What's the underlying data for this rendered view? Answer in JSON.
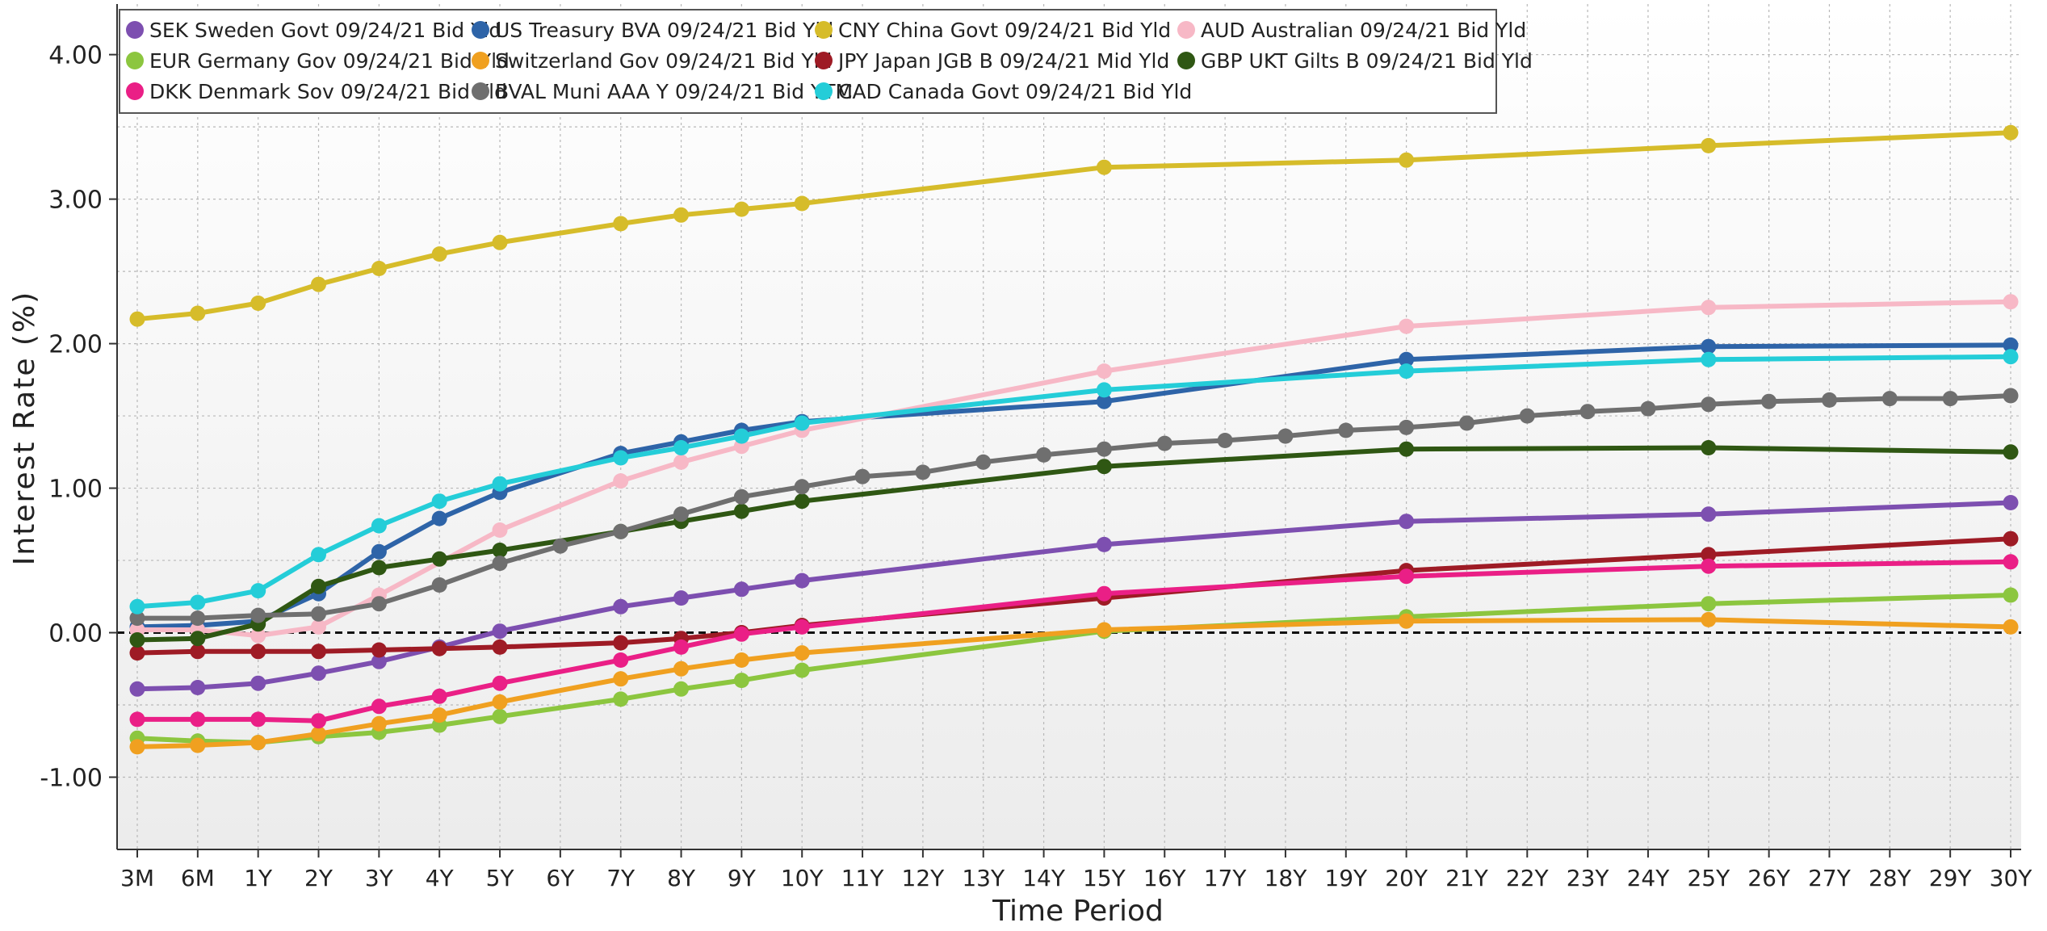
{
  "chart_data": {
    "type": "line",
    "xlabel": "Time Period",
    "ylabel": "Interest Rate (%)",
    "ylim": [
      -1.5,
      4.35
    ],
    "yticks": [
      4.0,
      3.0,
      2.0,
      1.0,
      0.0,
      -1.0
    ],
    "ytick_labels": [
      "4.00",
      "3.00",
      "2.00",
      "1.00",
      "0.00",
      "-1.00"
    ],
    "categories": [
      "3M",
      "6M",
      "1Y",
      "2Y",
      "3Y",
      "4Y",
      "5Y",
      "6Y",
      "7Y",
      "8Y",
      "9Y",
      "10Y",
      "11Y",
      "12Y",
      "13Y",
      "14Y",
      "15Y",
      "16Y",
      "17Y",
      "18Y",
      "19Y",
      "20Y",
      "21Y",
      "22Y",
      "23Y",
      "24Y",
      "25Y",
      "26Y",
      "27Y",
      "28Y",
      "29Y",
      "30Y"
    ],
    "grid": true,
    "legend_position": "top-left",
    "zero_line": "dashed",
    "series": [
      {
        "name": "SEK Sweden Govt 09/24/21 Bid Yld",
        "color": "#7d4fb0",
        "points": [
          [
            "3M",
            -0.39
          ],
          [
            "6M",
            -0.38
          ],
          [
            "1Y",
            -0.35
          ],
          [
            "2Y",
            -0.28
          ],
          [
            "3Y",
            -0.2
          ],
          [
            "4Y",
            -0.1
          ],
          [
            "5Y",
            0.01
          ],
          [
            "7Y",
            0.18
          ],
          [
            "8Y",
            0.24
          ],
          [
            "9Y",
            0.3
          ],
          [
            "10Y",
            0.36
          ],
          [
            "15Y",
            0.61
          ],
          [
            "20Y",
            0.77
          ],
          [
            "25Y",
            0.82
          ],
          [
            "30Y",
            0.9
          ]
        ]
      },
      {
        "name": "US Treasury BVA 09/24/21 Bid Yld",
        "color": "#2e64a8",
        "points": [
          [
            "3M",
            0.04
          ],
          [
            "6M",
            0.05
          ],
          [
            "1Y",
            0.08
          ],
          [
            "2Y",
            0.27
          ],
          [
            "3Y",
            0.56
          ],
          [
            "4Y",
            0.79
          ],
          [
            "5Y",
            0.97
          ],
          [
            "7Y",
            1.24
          ],
          [
            "8Y",
            1.32
          ],
          [
            "9Y",
            1.4
          ],
          [
            "10Y",
            1.46
          ],
          [
            "15Y",
            1.6
          ],
          [
            "20Y",
            1.89
          ],
          [
            "25Y",
            1.98
          ],
          [
            "30Y",
            1.99
          ]
        ]
      },
      {
        "name": "CNY China Govt  09/24/21 Bid Yld",
        "color": "#d6bc2a",
        "points": [
          [
            "3M",
            2.17
          ],
          [
            "6M",
            2.21
          ],
          [
            "1Y",
            2.28
          ],
          [
            "2Y",
            2.41
          ],
          [
            "3Y",
            2.52
          ],
          [
            "4Y",
            2.62
          ],
          [
            "5Y",
            2.7
          ],
          [
            "7Y",
            2.83
          ],
          [
            "8Y",
            2.89
          ],
          [
            "9Y",
            2.93
          ],
          [
            "10Y",
            2.97
          ],
          [
            "15Y",
            3.22
          ],
          [
            "20Y",
            3.27
          ],
          [
            "25Y",
            3.37
          ],
          [
            "30Y",
            3.46
          ]
        ]
      },
      {
        "name": "AUD Australian  09/24/21 Bid Yld",
        "color": "#f7b8c6",
        "points": [
          [
            "3M",
            0.02
          ],
          [
            "6M",
            0.02
          ],
          [
            "1Y",
            -0.02
          ],
          [
            "2Y",
            0.04
          ],
          [
            "3Y",
            0.26
          ],
          [
            "5Y",
            0.71
          ],
          [
            "7Y",
            1.05
          ],
          [
            "8Y",
            1.18
          ],
          [
            "9Y",
            1.29
          ],
          [
            "10Y",
            1.4
          ],
          [
            "15Y",
            1.81
          ],
          [
            "20Y",
            2.12
          ],
          [
            "25Y",
            2.25
          ],
          [
            "30Y",
            2.29
          ]
        ]
      },
      {
        "name": "EUR Germany Gov 09/24/21 Bid Yld",
        "color": "#8cc63f",
        "points": [
          [
            "3M",
            -0.73
          ],
          [
            "6M",
            -0.75
          ],
          [
            "1Y",
            -0.76
          ],
          [
            "2Y",
            -0.72
          ],
          [
            "3Y",
            -0.69
          ],
          [
            "4Y",
            -0.64
          ],
          [
            "5Y",
            -0.58
          ],
          [
            "7Y",
            -0.46
          ],
          [
            "8Y",
            -0.39
          ],
          [
            "9Y",
            -0.33
          ],
          [
            "10Y",
            -0.26
          ],
          [
            "15Y",
            0.01
          ],
          [
            "20Y",
            0.11
          ],
          [
            "25Y",
            0.2
          ],
          [
            "30Y",
            0.26
          ]
        ]
      },
      {
        "name": "Switzerland Gov 09/24/21 Bid Yld",
        "color": "#f0a020",
        "points": [
          [
            "3M",
            -0.79
          ],
          [
            "6M",
            -0.78
          ],
          [
            "1Y",
            -0.76
          ],
          [
            "2Y",
            -0.7
          ],
          [
            "3Y",
            -0.63
          ],
          [
            "4Y",
            -0.57
          ],
          [
            "5Y",
            -0.48
          ],
          [
            "7Y",
            -0.32
          ],
          [
            "8Y",
            -0.25
          ],
          [
            "9Y",
            -0.19
          ],
          [
            "10Y",
            -0.14
          ],
          [
            "15Y",
            0.02
          ],
          [
            "20Y",
            0.08
          ],
          [
            "25Y",
            0.09
          ],
          [
            "30Y",
            0.04
          ]
        ]
      },
      {
        "name": "JPY Japan JGB B 09/24/21 Mid Yld",
        "color": "#9e1b25",
        "points": [
          [
            "3M",
            -0.14
          ],
          [
            "6M",
            -0.13
          ],
          [
            "1Y",
            -0.13
          ],
          [
            "2Y",
            -0.13
          ],
          [
            "3Y",
            -0.12
          ],
          [
            "4Y",
            -0.11
          ],
          [
            "5Y",
            -0.1
          ],
          [
            "7Y",
            -0.07
          ],
          [
            "8Y",
            -0.04
          ],
          [
            "9Y",
            0.0
          ],
          [
            "10Y",
            0.05
          ],
          [
            "15Y",
            0.24
          ],
          [
            "20Y",
            0.43
          ],
          [
            "25Y",
            0.54
          ],
          [
            "30Y",
            0.65
          ]
        ]
      },
      {
        "name": "GBP UKT Gilts B 09/24/21 Bid Yld",
        "color": "#2f5713",
        "points": [
          [
            "3M",
            -0.05
          ],
          [
            "6M",
            -0.04
          ],
          [
            "1Y",
            0.06
          ],
          [
            "2Y",
            0.32
          ],
          [
            "3Y",
            0.45
          ],
          [
            "4Y",
            0.51
          ],
          [
            "5Y",
            0.57
          ],
          [
            "7Y",
            0.7
          ],
          [
            "8Y",
            0.77
          ],
          [
            "9Y",
            0.84
          ],
          [
            "10Y",
            0.91
          ],
          [
            "15Y",
            1.15
          ],
          [
            "20Y",
            1.27
          ],
          [
            "25Y",
            1.28
          ],
          [
            "30Y",
            1.25
          ]
        ]
      },
      {
        "name": "DKK Denmark Sov 09/24/21 Bid Yld",
        "color": "#ea1f86",
        "points": [
          [
            "3M",
            -0.6
          ],
          [
            "6M",
            -0.6
          ],
          [
            "1Y",
            -0.6
          ],
          [
            "2Y",
            -0.61
          ],
          [
            "3Y",
            -0.51
          ],
          [
            "4Y",
            -0.44
          ],
          [
            "5Y",
            -0.35
          ],
          [
            "7Y",
            -0.19
          ],
          [
            "8Y",
            -0.1
          ],
          [
            "9Y",
            -0.01
          ],
          [
            "10Y",
            0.04
          ],
          [
            "15Y",
            0.27
          ],
          [
            "20Y",
            0.39
          ],
          [
            "25Y",
            0.46
          ],
          [
            "30Y",
            0.49
          ]
        ]
      },
      {
        "name": "BVAL Muni AAA Y 09/24/21 Bid YTM",
        "color": "#6f6f6f",
        "points": [
          [
            "3M",
            0.1
          ],
          [
            "6M",
            0.1
          ],
          [
            "1Y",
            0.12
          ],
          [
            "2Y",
            0.13
          ],
          [
            "3Y",
            0.2
          ],
          [
            "4Y",
            0.33
          ],
          [
            "5Y",
            0.48
          ],
          [
            "6Y",
            0.6
          ],
          [
            "7Y",
            0.7
          ],
          [
            "8Y",
            0.82
          ],
          [
            "9Y",
            0.94
          ],
          [
            "10Y",
            1.01
          ],
          [
            "11Y",
            1.08
          ],
          [
            "12Y",
            1.11
          ],
          [
            "13Y",
            1.18
          ],
          [
            "14Y",
            1.23
          ],
          [
            "15Y",
            1.27
          ],
          [
            "16Y",
            1.31
          ],
          [
            "17Y",
            1.33
          ],
          [
            "18Y",
            1.36
          ],
          [
            "19Y",
            1.4
          ],
          [
            "20Y",
            1.42
          ],
          [
            "21Y",
            1.45
          ],
          [
            "22Y",
            1.5
          ],
          [
            "23Y",
            1.53
          ],
          [
            "24Y",
            1.55
          ],
          [
            "25Y",
            1.58
          ],
          [
            "26Y",
            1.6
          ],
          [
            "27Y",
            1.61
          ],
          [
            "28Y",
            1.62
          ],
          [
            "29Y",
            1.62
          ],
          [
            "30Y",
            1.64
          ]
        ]
      },
      {
        "name": "CAD Canada Govt 09/24/21 Bid Yld",
        "color": "#24cdd8",
        "points": [
          [
            "3M",
            0.18
          ],
          [
            "6M",
            0.21
          ],
          [
            "1Y",
            0.29
          ],
          [
            "2Y",
            0.54
          ],
          [
            "3Y",
            0.74
          ],
          [
            "4Y",
            0.91
          ],
          [
            "5Y",
            1.03
          ],
          [
            "7Y",
            1.21
          ],
          [
            "8Y",
            1.28
          ],
          [
            "9Y",
            1.36
          ],
          [
            "10Y",
            1.45
          ],
          [
            "15Y",
            1.68
          ],
          [
            "20Y",
            1.81
          ],
          [
            "25Y",
            1.89
          ],
          [
            "30Y",
            1.91
          ]
        ]
      }
    ]
  }
}
